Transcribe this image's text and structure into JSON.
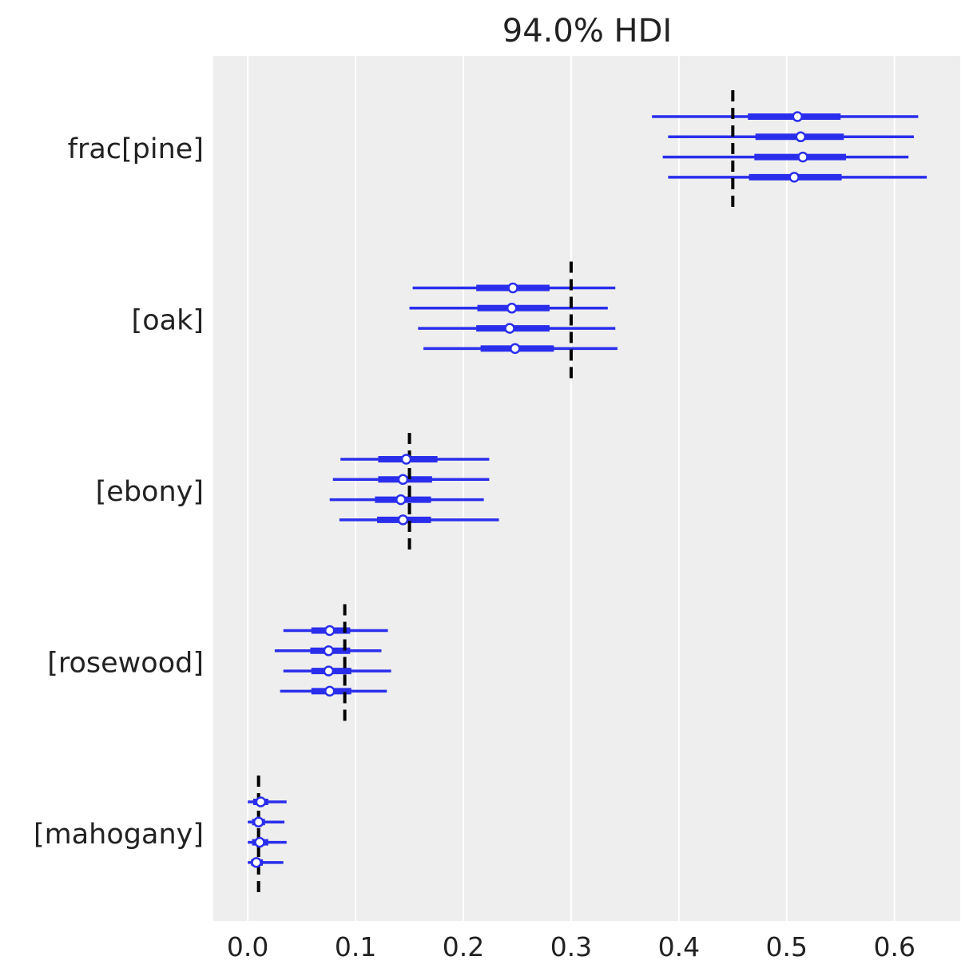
{
  "chart_data": {
    "type": "forest",
    "title": "94.0% HDI",
    "xlim": [
      -0.032,
      0.661
    ],
    "xticks": [
      "0.0",
      "0.1",
      "0.2",
      "0.3",
      "0.4",
      "0.5",
      "0.6"
    ],
    "xtick_values": [
      0.0,
      0.1,
      0.2,
      0.3,
      0.4,
      0.5,
      0.6
    ],
    "grid": "vertical",
    "colors": {
      "series": "#2a2eec",
      "reference": "#000000",
      "background": "#eeeeee",
      "grid": "#ffffff"
    },
    "groups": [
      {
        "label": "frac[pine]",
        "reference": 0.45,
        "chains": [
          {
            "hdi_low": 0.375,
            "hdi_high": 0.622,
            "iqr_low": 0.464,
            "iqr_high": 0.55,
            "median": 0.51
          },
          {
            "hdi_low": 0.39,
            "hdi_high": 0.618,
            "iqr_low": 0.471,
            "iqr_high": 0.553,
            "median": 0.513
          },
          {
            "hdi_low": 0.385,
            "hdi_high": 0.613,
            "iqr_low": 0.47,
            "iqr_high": 0.555,
            "median": 0.515
          },
          {
            "hdi_low": 0.39,
            "hdi_high": 0.63,
            "iqr_low": 0.465,
            "iqr_high": 0.551,
            "median": 0.507
          }
        ]
      },
      {
        "label": "[oak]",
        "reference": 0.3,
        "chains": [
          {
            "hdi_low": 0.153,
            "hdi_high": 0.341,
            "iqr_low": 0.212,
            "iqr_high": 0.28,
            "median": 0.246
          },
          {
            "hdi_low": 0.15,
            "hdi_high": 0.334,
            "iqr_low": 0.213,
            "iqr_high": 0.28,
            "median": 0.245
          },
          {
            "hdi_low": 0.158,
            "hdi_high": 0.341,
            "iqr_low": 0.212,
            "iqr_high": 0.28,
            "median": 0.243
          },
          {
            "hdi_low": 0.163,
            "hdi_high": 0.343,
            "iqr_low": 0.216,
            "iqr_high": 0.284,
            "median": 0.248
          }
        ]
      },
      {
        "label": "[ebony]",
        "reference": 0.15,
        "chains": [
          {
            "hdi_low": 0.086,
            "hdi_high": 0.224,
            "iqr_low": 0.121,
            "iqr_high": 0.176,
            "median": 0.147
          },
          {
            "hdi_low": 0.079,
            "hdi_high": 0.224,
            "iqr_low": 0.121,
            "iqr_high": 0.171,
            "median": 0.144
          },
          {
            "hdi_low": 0.076,
            "hdi_high": 0.219,
            "iqr_low": 0.118,
            "iqr_high": 0.17,
            "median": 0.142
          },
          {
            "hdi_low": 0.085,
            "hdi_high": 0.233,
            "iqr_low": 0.12,
            "iqr_high": 0.17,
            "median": 0.144
          }
        ]
      },
      {
        "label": "[rosewood]",
        "reference": 0.09,
        "chains": [
          {
            "hdi_low": 0.033,
            "hdi_high": 0.13,
            "iqr_low": 0.059,
            "iqr_high": 0.095,
            "median": 0.076
          },
          {
            "hdi_low": 0.025,
            "hdi_high": 0.124,
            "iqr_low": 0.058,
            "iqr_high": 0.095,
            "median": 0.075
          },
          {
            "hdi_low": 0.033,
            "hdi_high": 0.133,
            "iqr_low": 0.059,
            "iqr_high": 0.096,
            "median": 0.075
          },
          {
            "hdi_low": 0.03,
            "hdi_high": 0.129,
            "iqr_low": 0.059,
            "iqr_high": 0.096,
            "median": 0.076
          }
        ]
      },
      {
        "label": "[mahogany]",
        "reference": 0.01,
        "chains": [
          {
            "hdi_low": 0.0,
            "hdi_high": 0.036,
            "iqr_low": 0.005,
            "iqr_high": 0.019,
            "median": 0.012
          },
          {
            "hdi_low": 0.0,
            "hdi_high": 0.034,
            "iqr_low": 0.004,
            "iqr_high": 0.016,
            "median": 0.01
          },
          {
            "hdi_low": 0.0,
            "hdi_high": 0.036,
            "iqr_low": 0.004,
            "iqr_high": 0.019,
            "median": 0.011
          },
          {
            "hdi_low": 0.0,
            "hdi_high": 0.033,
            "iqr_low": 0.003,
            "iqr_high": 0.014,
            "median": 0.008
          }
        ]
      }
    ]
  }
}
